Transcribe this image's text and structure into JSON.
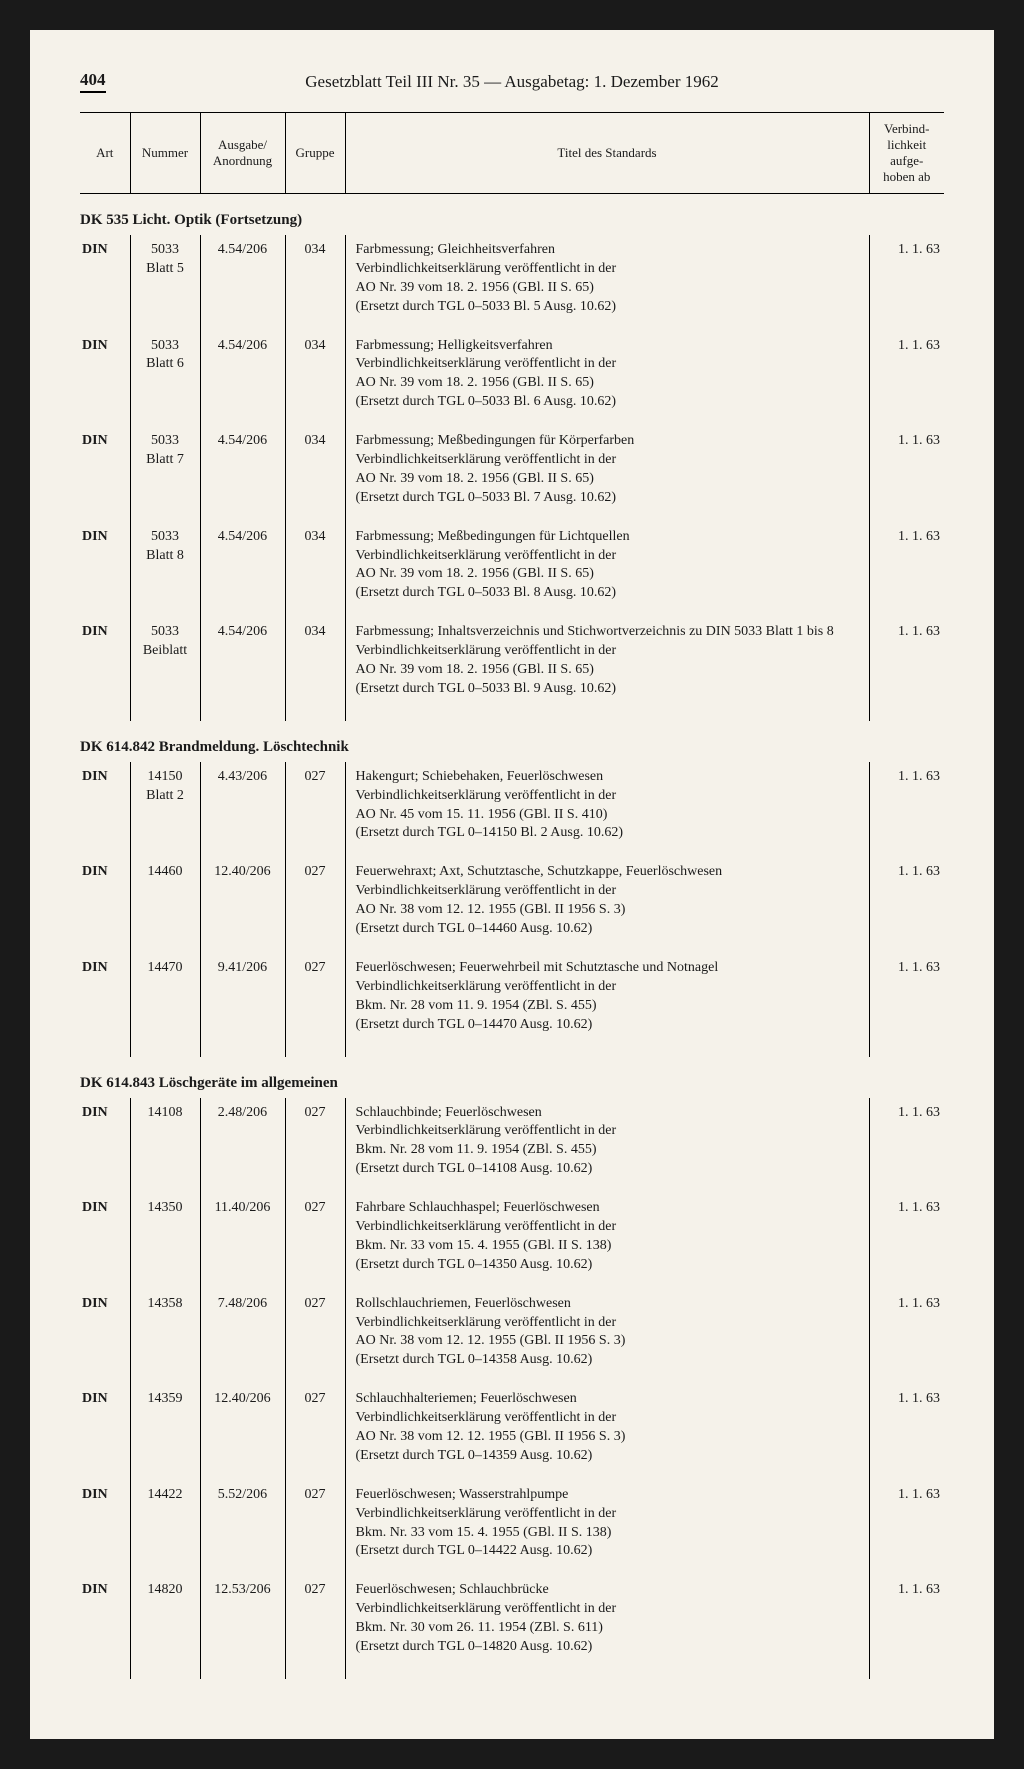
{
  "page_number": "404",
  "page_title": "Gesetzblatt Teil III Nr. 35 — Ausgabetag: 1. Dezember 1962",
  "headers": {
    "art": "Art",
    "nummer": "Nummer",
    "ausgabe": "Ausgabe/\nAnordnung",
    "gruppe": "Gruppe",
    "titel": "Titel des Standards",
    "verbind": "Verbind-\nlichkeit\naufge-\nhoben ab"
  },
  "sections": [
    {
      "heading": "DK 535  Licht. Optik (Fortsetzung)",
      "rows": [
        {
          "art": "DIN",
          "nummer": "5033\nBlatt 5",
          "ausgabe": "4.54/206",
          "gruppe": "034",
          "titel": "Farbmessung; Gleichheitsverfahren\nVerbindlichkeitserklärung veröffentlicht in der\nAO Nr. 39 vom 18. 2. 1956 (GBl. II S. 65)\n(Ersetzt durch TGL 0–5033 Bl. 5 Ausg. 10.62)",
          "verbind": "1. 1. 63"
        },
        {
          "art": "DIN",
          "nummer": "5033\nBlatt 6",
          "ausgabe": "4.54/206",
          "gruppe": "034",
          "titel": "Farbmessung; Helligkeitsverfahren\nVerbindlichkeitserklärung veröffentlicht in der\nAO Nr. 39 vom 18. 2. 1956 (GBl. II S. 65)\n(Ersetzt durch TGL 0–5033 Bl. 6 Ausg. 10.62)",
          "verbind": "1. 1. 63"
        },
        {
          "art": "DIN",
          "nummer": "5033\nBlatt 7",
          "ausgabe": "4.54/206",
          "gruppe": "034",
          "titel": "Farbmessung; Meßbedingungen für Körperfarben\nVerbindlichkeitserklärung veröffentlicht in der\nAO Nr. 39 vom 18. 2. 1956 (GBl. II S. 65)\n(Ersetzt durch TGL 0–5033 Bl. 7 Ausg. 10.62)",
          "verbind": "1. 1. 63"
        },
        {
          "art": "DIN",
          "nummer": "5033\nBlatt 8",
          "ausgabe": "4.54/206",
          "gruppe": "034",
          "titel": "Farbmessung; Meßbedingungen für Lichtquellen\nVerbindlichkeitserklärung veröffentlicht in der\nAO Nr. 39 vom 18. 2. 1956 (GBl. II S. 65)\n(Ersetzt durch TGL 0–5033 Bl. 8 Ausg. 10.62)",
          "verbind": "1. 1. 63"
        },
        {
          "art": "DIN",
          "nummer": "5033\nBeiblatt",
          "ausgabe": "4.54/206",
          "gruppe": "034",
          "titel": "Farbmessung; Inhaltsverzeichnis und Stichwortverzeichnis zu DIN 5033 Blatt 1 bis 8\nVerbindlichkeitserklärung veröffentlicht in der\nAO Nr. 39 vom 18. 2. 1956 (GBl. II S. 65)\n(Ersetzt durch TGL 0–5033 Bl. 9 Ausg. 10.62)",
          "verbind": "1. 1. 63"
        }
      ]
    },
    {
      "heading": "DK 614.842 Brandmeldung. Löschtechnik",
      "rows": [
        {
          "art": "DIN",
          "nummer": "14150\nBlatt 2",
          "ausgabe": "4.43/206",
          "gruppe": "027",
          "titel": "Hakengurt; Schiebehaken, Feuerlöschwesen\nVerbindlichkeitserklärung veröffentlicht in der\nAO Nr. 45 vom 15. 11. 1956 (GBl. II S. 410)\n(Ersetzt durch TGL 0–14150 Bl. 2 Ausg. 10.62)",
          "verbind": "1. 1. 63"
        },
        {
          "art": "DIN",
          "nummer": "14460",
          "ausgabe": "12.40/206",
          "gruppe": "027",
          "titel": "Feuerwehraxt; Axt, Schutztasche, Schutzkappe, Feuerlöschwesen\nVerbindlichkeitserklärung veröffentlicht in der\nAO Nr. 38 vom 12. 12. 1955 (GBl. II 1956 S. 3)\n(Ersetzt durch TGL 0–14460 Ausg. 10.62)",
          "verbind": "1. 1. 63"
        },
        {
          "art": "DIN",
          "nummer": "14470",
          "ausgabe": "9.41/206",
          "gruppe": "027",
          "titel": "Feuerlöschwesen; Feuerwehrbeil mit Schutztasche und Notnagel\nVerbindlichkeitserklärung veröffentlicht in der\nBkm. Nr. 28 vom 11. 9. 1954 (ZBl. S. 455)\n(Ersetzt durch TGL 0–14470 Ausg. 10.62)",
          "verbind": "1. 1. 63"
        }
      ]
    },
    {
      "heading": "DK 614.843 Löschgeräte im allgemeinen",
      "rows": [
        {
          "art": "DIN",
          "nummer": "14108",
          "ausgabe": "2.48/206",
          "gruppe": "027",
          "titel": "Schlauchbinde; Feuerlöschwesen\nVerbindlichkeitserklärung veröffentlicht in der\nBkm. Nr. 28 vom 11. 9. 1954 (ZBl. S. 455)\n(Ersetzt durch TGL 0–14108 Ausg. 10.62)",
          "verbind": "1. 1. 63"
        },
        {
          "art": "DIN",
          "nummer": "14350",
          "ausgabe": "11.40/206",
          "gruppe": "027",
          "titel": "Fahrbare Schlauchhaspel; Feuerlöschwesen\nVerbindlichkeitserklärung veröffentlicht in der\nBkm. Nr. 33 vom 15. 4. 1955 (GBl. II S. 138)\n(Ersetzt durch TGL 0–14350 Ausg. 10.62)",
          "verbind": "1. 1. 63"
        },
        {
          "art": "DIN",
          "nummer": "14358",
          "ausgabe": "7.48/206",
          "gruppe": "027",
          "titel": "Rollschlauchriemen, Feuerlöschwesen\nVerbindlichkeitserklärung veröffentlicht in der\nAO Nr. 38 vom 12. 12. 1955 (GBl. II 1956 S. 3)\n(Ersetzt durch TGL 0–14358 Ausg. 10.62)",
          "verbind": "1. 1. 63"
        },
        {
          "art": "DIN",
          "nummer": "14359",
          "ausgabe": "12.40/206",
          "gruppe": "027",
          "titel": "Schlauchhalteriemen; Feuerlöschwesen\nVerbindlichkeitserklärung veröffentlicht in der\nAO Nr. 38 vom 12. 12. 1955 (GBl. II 1956 S. 3)\n(Ersetzt durch TGL 0–14359 Ausg. 10.62)",
          "verbind": "1. 1. 63"
        },
        {
          "art": "DIN",
          "nummer": "14422",
          "ausgabe": "5.52/206",
          "gruppe": "027",
          "titel": "Feuerlöschwesen; Wasserstrahlpumpe\nVerbindlichkeitserklärung veröffentlicht in der\nBkm. Nr. 33 vom 15. 4. 1955 (GBl. II S. 138)\n(Ersetzt durch TGL 0–14422 Ausg. 10.62)",
          "verbind": "1. 1. 63"
        },
        {
          "art": "DIN",
          "nummer": "14820",
          "ausgabe": "12.53/206",
          "gruppe": "027",
          "titel": "Feuerlöschwesen; Schlauchbrücke\nVerbindlichkeitserklärung veröffentlicht in der\nBkm. Nr. 30 vom 26. 11. 1954 (ZBl. S. 611)\n(Ersetzt durch TGL 0–14820 Ausg. 10.62)",
          "verbind": "1. 1. 63"
        }
      ]
    }
  ]
}
